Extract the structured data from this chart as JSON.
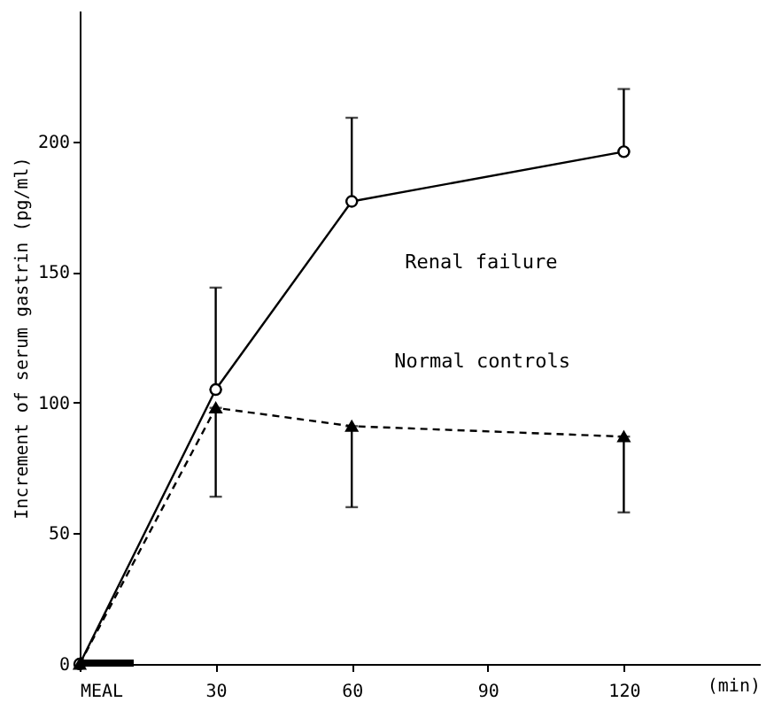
{
  "chart_data": {
    "type": "line",
    "ylabel": "Increment of serum gastrin (pg/ml)",
    "xlabel": "(min)",
    "x": [
      0,
      30,
      60,
      120
    ],
    "xlim": [
      0,
      150
    ],
    "xticks": [
      {
        "value": 0,
        "label": "MEAL"
      },
      30,
      60,
      90,
      120
    ],
    "ylim": [
      0,
      250
    ],
    "yticks": [
      0,
      50,
      100,
      150,
      200
    ],
    "series": [
      {
        "name": "Renal failure",
        "color": "#000000",
        "marker": "circle",
        "line_style": "solid",
        "values": [
          0,
          105,
          177,
          196
        ],
        "errors": [
          null,
          [
            105,
            144
          ],
          [
            177,
            209
          ],
          [
            196,
            220
          ]
        ]
      },
      {
        "name": "Normal controls",
        "color": "#000000",
        "marker": "triangle",
        "line_style": "dashed",
        "values": [
          0,
          98,
          91,
          87
        ],
        "errors": [
          null,
          [
            64,
            98
          ],
          [
            60,
            91
          ],
          [
            58,
            87
          ]
        ]
      }
    ]
  }
}
